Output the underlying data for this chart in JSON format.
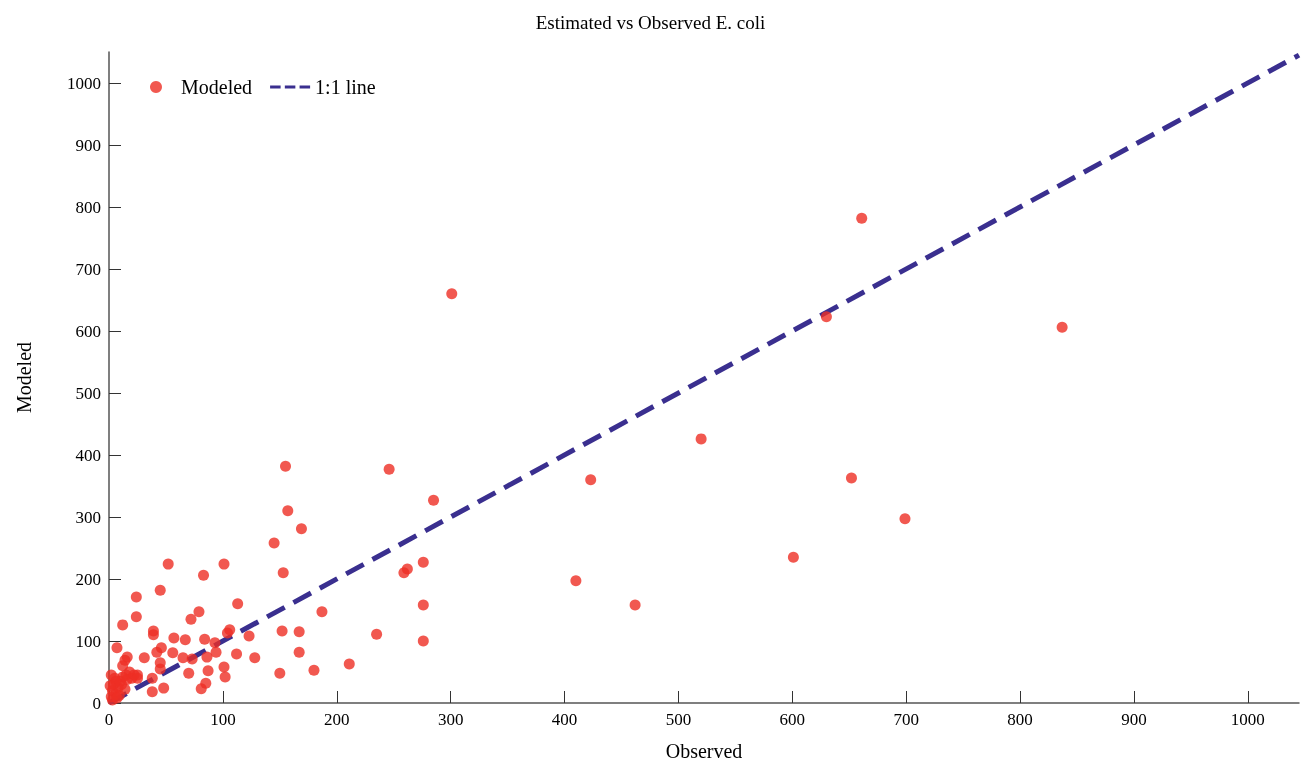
{
  "chart_data": {
    "type": "scatter",
    "title": "Estimated vs Observed E. coli",
    "xlabel": "Observed",
    "ylabel": "Modeled",
    "xlim": [
      0,
      1045
    ],
    "ylim": [
      0,
      1050
    ],
    "xticks": [
      0,
      100,
      200,
      300,
      400,
      500,
      600,
      700,
      800,
      900,
      1000
    ],
    "yticks": [
      0,
      100,
      200,
      300,
      400,
      500,
      600,
      700,
      800,
      900,
      1000
    ],
    "grid": false,
    "legend": "top left",
    "marker": "circle",
    "series": [
      {
        "name": "Modeled",
        "color": "#ee2e24",
        "x": [
          301,
          661,
          630,
          837,
          520,
          423,
          652,
          699,
          601,
          410,
          462,
          155,
          246,
          157,
          285,
          169,
          145,
          259,
          262,
          276,
          276,
          276,
          235,
          187,
          211,
          180,
          52,
          101,
          83,
          153,
          45,
          24,
          113,
          79,
          72,
          24,
          12,
          39,
          39,
          57,
          67,
          84,
          93,
          106,
          104,
          123,
          152,
          7,
          31,
          42,
          46,
          56,
          65,
          73,
          86,
          94,
          112,
          128,
          45,
          45,
          70,
          87,
          101,
          102,
          150,
          38,
          14,
          16,
          12,
          25,
          48,
          38,
          81,
          85,
          167,
          167,
          2,
          3,
          4,
          5,
          2,
          6,
          8,
          10,
          12,
          14,
          15,
          18,
          20,
          3,
          9,
          11,
          6,
          16,
          22,
          25,
          1,
          7
        ],
        "values": [
          660,
          782,
          623,
          606,
          426,
          360,
          363,
          297,
          235,
          197,
          158,
          382,
          377,
          310,
          327,
          281,
          258,
          210,
          216,
          227,
          158,
          100,
          111,
          147,
          63,
          53,
          224,
          224,
          206,
          210,
          182,
          171,
          160,
          147,
          135,
          139,
          126,
          116,
          110,
          105,
          102,
          103,
          97,
          118,
          113,
          108,
          116,
          89,
          73,
          82,
          89,
          81,
          73,
          71,
          74,
          82,
          79,
          73,
          55,
          65,
          48,
          52,
          58,
          42,
          48,
          40,
          69,
          74,
          60,
          45,
          24,
          18,
          23,
          32,
          82,
          115,
          10,
          20,
          30,
          40,
          45,
          15,
          25,
          35,
          42,
          22,
          45,
          50,
          40,
          5,
          12,
          30,
          35,
          38,
          45,
          40,
          28,
          8
        ]
      },
      {
        "name": "1:1 line",
        "color": "#3a2f8f",
        "type": "line",
        "marker": "none",
        "line_style": "dashed",
        "x": [
          0,
          1045
        ],
        "values": [
          0,
          1045
        ]
      }
    ]
  }
}
